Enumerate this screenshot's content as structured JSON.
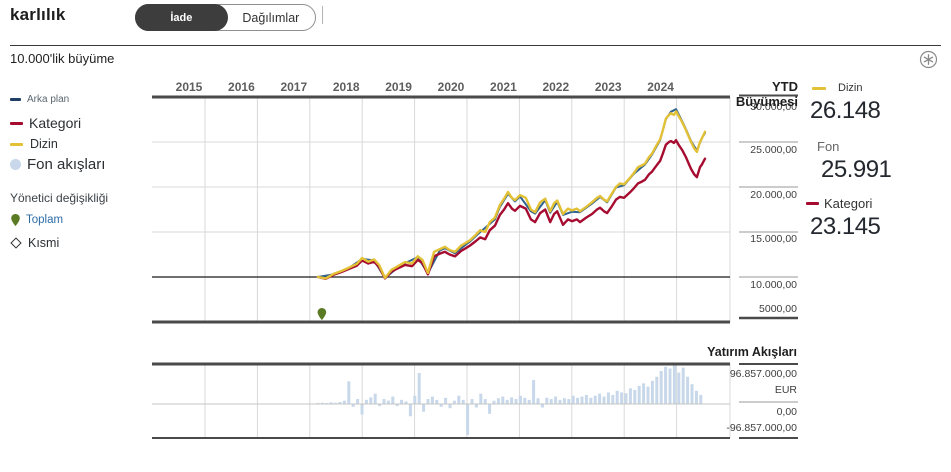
{
  "header": {
    "title": "karlılık",
    "tabs": [
      {
        "label": "İade"
      },
      {
        "label": "Dağılımlar"
      }
    ],
    "active_tab": "İade"
  },
  "section_title": "10.000'lik büyüme",
  "sidebar_legend": {
    "series": [
      {
        "label": "Arka plan",
        "color": "#1f3f66",
        "swatch": "dash"
      },
      {
        "label": "Kategori",
        "color": "#a50c30",
        "swatch": "dash"
      },
      {
        "label": "Dizin",
        "color": "#e3c137",
        "swatch": "dash"
      },
      {
        "label": "Fon akışları",
        "color": "#c8d8ea",
        "swatch": "circle"
      }
    ],
    "manager_change": {
      "title": "Yönetici değişikliği",
      "total_label": "Toplam",
      "partial_label": "Kısmi",
      "pin_color": "#5a7a23"
    }
  },
  "ytd_panel": {
    "title": "YTD Büyümesi",
    "dizin_label": "Dizin",
    "dizin_value": "26.148",
    "fon_label": "Fon",
    "fon_value": "25.991",
    "kategori_label": "Kategori",
    "kategori_value": "23.145"
  },
  "icons": {
    "info_asterisk_color": "#8a8a8a"
  },
  "chart_data": [
    {
      "type": "line",
      "title": "10.000'lik büyüme",
      "x_labels": [
        "2015",
        "2016",
        "2017",
        "2018",
        "2019",
        "2020",
        "2021",
        "2022",
        "2023",
        "2024"
      ],
      "y_ticks": [
        "30.000,00",
        "25.000,00",
        "20.000,00",
        "15.000,00",
        "10.000,00",
        "5000,00"
      ],
      "ylim": [
        5000,
        30000
      ],
      "baseline_value": 10000,
      "legend_position": "left-and-right",
      "grid": true,
      "manager_change_markers": [
        {
          "type": "Toplam",
          "x_frac": 0.01
        }
      ],
      "series": [
        {
          "name": "Arka plan",
          "color": "#2f6390",
          "width": 2,
          "points": [
            [
              0,
              10000
            ],
            [
              0.04,
              10300
            ],
            [
              0.08,
              11000
            ],
            [
              0.114,
              12000
            ],
            [
              0.145,
              11850
            ],
            [
              0.173,
              9880
            ],
            [
              0.21,
              11200
            ],
            [
              0.225,
              11550
            ],
            [
              0.258,
              12200
            ],
            [
              0.284,
              10400
            ],
            [
              0.315,
              12950
            ],
            [
              0.328,
              13200
            ],
            [
              0.354,
              12650
            ],
            [
              0.382,
              13600
            ],
            [
              0.393,
              13950
            ],
            [
              0.419,
              15000
            ],
            [
              0.444,
              15900
            ],
            [
              0.457,
              16400
            ],
            [
              0.47,
              17800
            ],
            [
              0.491,
              19250
            ],
            [
              0.509,
              18400
            ],
            [
              0.522,
              18950
            ],
            [
              0.55,
              17300
            ],
            [
              0.561,
              17050
            ],
            [
              0.587,
              18550
            ],
            [
              0.6,
              17150
            ],
            [
              0.618,
              18350
            ],
            [
              0.633,
              16900
            ],
            [
              0.656,
              17250
            ],
            [
              0.677,
              17200
            ],
            [
              0.708,
              18150
            ],
            [
              0.729,
              18900
            ],
            [
              0.747,
              18300
            ],
            [
              0.77,
              19950
            ],
            [
              0.791,
              20200
            ],
            [
              0.817,
              21500
            ],
            [
              0.845,
              22500
            ],
            [
              0.863,
              23600
            ],
            [
              0.884,
              25200
            ],
            [
              0.899,
              27550
            ],
            [
              0.912,
              28350
            ],
            [
              0.925,
              28650
            ],
            [
              0.941,
              27300
            ],
            [
              0.951,
              26400
            ],
            [
              0.964,
              25100
            ],
            [
              0.979,
              24050
            ],
            [
              0.992,
              25450
            ],
            [
              1,
              25991
            ]
          ]
        },
        {
          "name": "Kategori",
          "color": "#a50c30",
          "width": 2.4,
          "points": [
            [
              0,
              10000
            ],
            [
              0.02,
              9800
            ],
            [
              0.04,
              10250
            ],
            [
              0.06,
              10550
            ],
            [
              0.08,
              10900
            ],
            [
              0.1,
              11250
            ],
            [
              0.114,
              11850
            ],
            [
              0.13,
              11500
            ],
            [
              0.145,
              11700
            ],
            [
              0.158,
              11100
            ],
            [
              0.173,
              9850
            ],
            [
              0.19,
              10600
            ],
            [
              0.21,
              11050
            ],
            [
              0.225,
              11350
            ],
            [
              0.243,
              11200
            ],
            [
              0.258,
              11900
            ],
            [
              0.27,
              11550
            ],
            [
              0.284,
              10300
            ],
            [
              0.3,
              12300
            ],
            [
              0.315,
              12600
            ],
            [
              0.328,
              12800
            ],
            [
              0.34,
              12500
            ],
            [
              0.354,
              12300
            ],
            [
              0.37,
              12900
            ],
            [
              0.382,
              13200
            ],
            [
              0.393,
              13500
            ],
            [
              0.408,
              14000
            ],
            [
              0.419,
              14400
            ],
            [
              0.432,
              14200
            ],
            [
              0.444,
              15200
            ],
            [
              0.457,
              15700
            ],
            [
              0.47,
              16900
            ],
            [
              0.481,
              17500
            ],
            [
              0.491,
              18200
            ],
            [
              0.501,
              17600
            ],
            [
              0.509,
              17350
            ],
            [
              0.522,
              17900
            ],
            [
              0.537,
              17600
            ],
            [
              0.55,
              16400
            ],
            [
              0.561,
              16100
            ],
            [
              0.574,
              17100
            ],
            [
              0.587,
              17500
            ],
            [
              0.6,
              16100
            ],
            [
              0.61,
              17000
            ],
            [
              0.618,
              17300
            ],
            [
              0.633,
              15800
            ],
            [
              0.646,
              16400
            ],
            [
              0.656,
              16200
            ],
            [
              0.669,
              16400
            ],
            [
              0.677,
              16100
            ],
            [
              0.693,
              16600
            ],
            [
              0.708,
              17000
            ],
            [
              0.721,
              17500
            ],
            [
              0.729,
              17700
            ],
            [
              0.739,
              17300
            ],
            [
              0.747,
              17100
            ],
            [
              0.76,
              17900
            ],
            [
              0.77,
              18600
            ],
            [
              0.78,
              18900
            ],
            [
              0.791,
              18800
            ],
            [
              0.806,
              19400
            ],
            [
              0.817,
              19900
            ],
            [
              0.827,
              20400
            ],
            [
              0.837,
              20600
            ],
            [
              0.845,
              20800
            ],
            [
              0.855,
              21400
            ],
            [
              0.863,
              21700
            ],
            [
              0.873,
              22300
            ],
            [
              0.884,
              22900
            ],
            [
              0.891,
              23700
            ],
            [
              0.899,
              24700
            ],
            [
              0.907,
              25000
            ],
            [
              0.912,
              25100
            ],
            [
              0.92,
              24900
            ],
            [
              0.925,
              25200
            ],
            [
              0.933,
              24600
            ],
            [
              0.941,
              24100
            ],
            [
              0.951,
              23300
            ],
            [
              0.959,
              22500
            ],
            [
              0.964,
              22000
            ],
            [
              0.972,
              21400
            ],
            [
              0.979,
              21100
            ],
            [
              0.987,
              22200
            ],
            [
              0.992,
              22500
            ],
            [
              1,
              23145
            ]
          ]
        },
        {
          "name": "Dizin",
          "color": "#e3c137",
          "width": 2.4,
          "points": [
            [
              0,
              10000
            ],
            [
              0.02,
              9850
            ],
            [
              0.04,
              10350
            ],
            [
              0.06,
              10650
            ],
            [
              0.08,
              11050
            ],
            [
              0.1,
              11450
            ],
            [
              0.114,
              12100
            ],
            [
              0.13,
              11700
            ],
            [
              0.145,
              11950
            ],
            [
              0.158,
              11350
            ],
            [
              0.173,
              9900
            ],
            [
              0.19,
              10800
            ],
            [
              0.21,
              11300
            ],
            [
              0.225,
              11650
            ],
            [
              0.243,
              11500
            ],
            [
              0.258,
              12300
            ],
            [
              0.27,
              11900
            ],
            [
              0.284,
              10450
            ],
            [
              0.3,
              12800
            ],
            [
              0.315,
              13100
            ],
            [
              0.328,
              13350
            ],
            [
              0.34,
              13000
            ],
            [
              0.354,
              12800
            ],
            [
              0.37,
              13500
            ],
            [
              0.382,
              13800
            ],
            [
              0.393,
              14100
            ],
            [
              0.408,
              14700
            ],
            [
              0.419,
              15200
            ],
            [
              0.432,
              15000
            ],
            [
              0.444,
              16100
            ],
            [
              0.457,
              16600
            ],
            [
              0.47,
              18000
            ],
            [
              0.481,
              18700
            ],
            [
              0.491,
              19450
            ],
            [
              0.501,
              18800
            ],
            [
              0.509,
              18550
            ],
            [
              0.522,
              19100
            ],
            [
              0.537,
              18800
            ],
            [
              0.55,
              17500
            ],
            [
              0.561,
              17200
            ],
            [
              0.574,
              18300
            ],
            [
              0.587,
              18700
            ],
            [
              0.6,
              17300
            ],
            [
              0.61,
              18200
            ],
            [
              0.618,
              18500
            ],
            [
              0.633,
              17000
            ],
            [
              0.646,
              17600
            ],
            [
              0.656,
              17400
            ],
            [
              0.669,
              17600
            ],
            [
              0.677,
              17300
            ],
            [
              0.693,
              17800
            ],
            [
              0.708,
              18300
            ],
            [
              0.721,
              18800
            ],
            [
              0.729,
              19000
            ],
            [
              0.739,
              18600
            ],
            [
              0.747,
              18400
            ],
            [
              0.76,
              19300
            ],
            [
              0.77,
              20000
            ],
            [
              0.78,
              20400
            ],
            [
              0.791,
              20300
            ],
            [
              0.806,
              21000
            ],
            [
              0.817,
              21600
            ],
            [
              0.827,
              22200
            ],
            [
              0.837,
              22400
            ],
            [
              0.845,
              22600
            ],
            [
              0.855,
              23300
            ],
            [
              0.863,
              23700
            ],
            [
              0.873,
              24500
            ],
            [
              0.884,
              25300
            ],
            [
              0.891,
              26300
            ],
            [
              0.899,
              27600
            ],
            [
              0.907,
              28000
            ],
            [
              0.912,
              28200
            ],
            [
              0.92,
              28000
            ],
            [
              0.925,
              28400
            ],
            [
              0.933,
              27800
            ],
            [
              0.941,
              27200
            ],
            [
              0.951,
              26300
            ],
            [
              0.959,
              25500
            ],
            [
              0.964,
              25000
            ],
            [
              0.972,
              24300
            ],
            [
              0.979,
              23900
            ],
            [
              0.987,
              25000
            ],
            [
              0.992,
              25400
            ],
            [
              1,
              26148
            ]
          ]
        }
      ]
    },
    {
      "type": "bar",
      "title": "Yatırım Akışları",
      "unit": "EUR",
      "y_ticks": [
        "96.857.000,00",
        "EUR",
        "0,00",
        "-96.857.000,00"
      ],
      "ylim_m_eur": [
        -96.857,
        96.857
      ],
      "color": "#c8d8ea",
      "values_m_eur": [
        2,
        3,
        2,
        4,
        3,
        5,
        8,
        55,
        -8,
        12,
        -30,
        10,
        16,
        25,
        -6,
        12,
        8,
        18,
        -6,
        10,
        6,
        -35,
        20,
        75,
        -22,
        12,
        18,
        10,
        -8,
        15,
        -12,
        8,
        20,
        10,
        -88,
        12,
        -10,
        25,
        12,
        -28,
        8,
        14,
        18,
        10,
        16,
        12,
        20,
        15,
        10,
        58,
        14,
        -10,
        15,
        12,
        18,
        10,
        14,
        12,
        20,
        15,
        18,
        22,
        15,
        20,
        25,
        18,
        28,
        22,
        32,
        28,
        26,
        38,
        34,
        44,
        50,
        42,
        56,
        66,
        80,
        90,
        86,
        95,
        76,
        88,
        66,
        48,
        32,
        22
      ]
    }
  ]
}
